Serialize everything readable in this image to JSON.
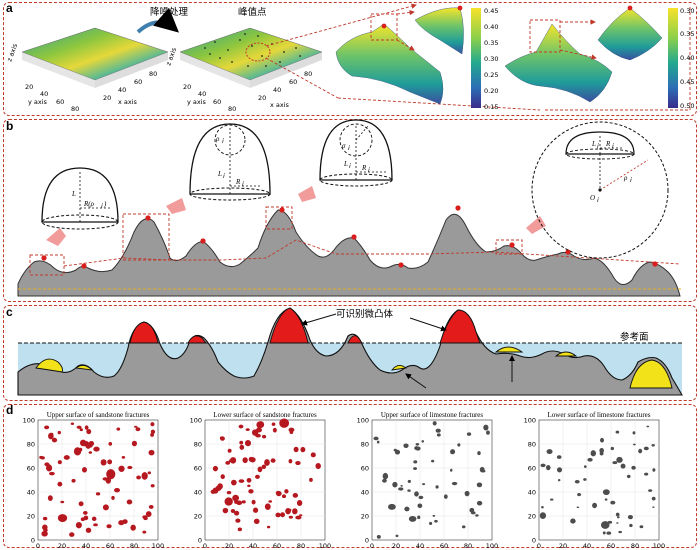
{
  "panels": {
    "a": {
      "label": "a",
      "denoise_label": "降噪处理",
      "peak_label": "峰值点",
      "plot1": {
        "ylabel": "y axis",
        "xlabel": "x axis",
        "zlabel": "z axis",
        "y_ticks": [
          "20",
          "40",
          "60",
          "80"
        ],
        "x_ticks": [
          "20",
          "40",
          "60",
          "80"
        ]
      },
      "plot2": {
        "ylabel": "y axis",
        "xlabel": "x axis",
        "zlabel": "z axis",
        "y_ticks": [
          "20",
          "40",
          "60",
          "80"
        ],
        "x_ticks": [
          "20",
          "40",
          "60",
          "80"
        ]
      },
      "colorbar1_ticks": [
        "0.45",
        "0.40",
        "0.35",
        "0.30",
        "0.25",
        "0.20",
        "0.15"
      ],
      "colorbar2_ticks": [
        "0.30",
        "0.35",
        "0.40",
        "0.45",
        "0.50"
      ]
    },
    "b": {
      "label": "b",
      "sym_L": "L",
      "sym_R_rho": "R(ρ",
      "sym_i": "i",
      "sym_close_paren": ")",
      "sym_rho": "ρ",
      "sym_R": "R",
      "sym_sigma": "σ",
      "sym_O": "O"
    },
    "c": {
      "label": "c",
      "identifiable_label": "可识别微凸体",
      "reference_label": "参考面"
    },
    "d": {
      "label": "d",
      "plots": [
        {
          "title": "Upper surface of sandstone fractures",
          "color": "#b5181f"
        },
        {
          "title": "Lower surface of sandstone fractures",
          "color": "#b5181f"
        },
        {
          "title": "Upper surface of limestone fractures",
          "color": "#4d4d4d"
        },
        {
          "title": "Lower surface of limestone fractures",
          "color": "#4d4d4d"
        }
      ],
      "y_ticks": [
        "100",
        "80",
        "60",
        "40",
        "20",
        "0"
      ],
      "x_ticks": [
        "0",
        "20",
        "40",
        "60",
        "80",
        "100"
      ]
    }
  }
}
